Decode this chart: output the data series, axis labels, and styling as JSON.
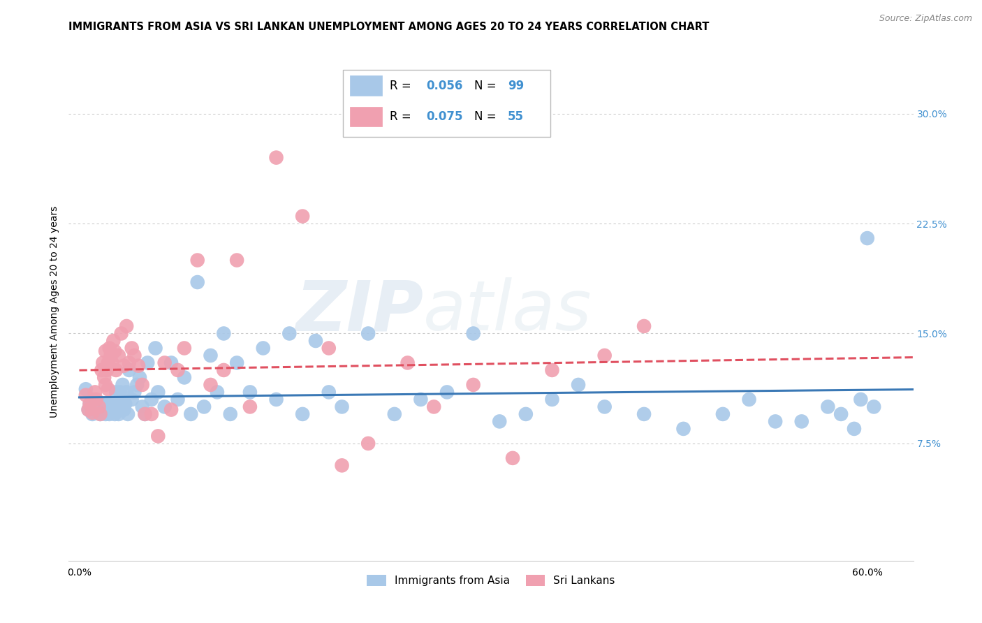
{
  "title": "IMMIGRANTS FROM ASIA VS SRI LANKAN UNEMPLOYMENT AMONG AGES 20 TO 24 YEARS CORRELATION CHART",
  "source": "Source: ZipAtlas.com",
  "xlabel_ticks": [
    "0.0%",
    "",
    "",
    "",
    "",
    "",
    "60.0%"
  ],
  "xlabel_vals": [
    0.0,
    0.1,
    0.2,
    0.3,
    0.4,
    0.5,
    0.6
  ],
  "ylabel": "Unemployment Among Ages 20 to 24 years",
  "ylabel_ticks": [
    "7.5%",
    "15.0%",
    "22.5%",
    "30.0%"
  ],
  "ylabel_vals": [
    0.075,
    0.15,
    0.225,
    0.3
  ],
  "ylim": [
    -0.005,
    0.335
  ],
  "xlim": [
    -0.008,
    0.635
  ],
  "series": [
    {
      "label": "Immigrants from Asia",
      "R": 0.056,
      "N": 99,
      "color": "#a8c8e8",
      "line_color": "#3a78b5",
      "line_style": "solid",
      "x": [
        0.005,
        0.007,
        0.008,
        0.01,
        0.01,
        0.01,
        0.012,
        0.013,
        0.014,
        0.015,
        0.015,
        0.016,
        0.016,
        0.017,
        0.018,
        0.018,
        0.019,
        0.019,
        0.02,
        0.02,
        0.021,
        0.021,
        0.022,
        0.022,
        0.023,
        0.023,
        0.024,
        0.024,
        0.025,
        0.025,
        0.026,
        0.026,
        0.027,
        0.027,
        0.028,
        0.028,
        0.029,
        0.03,
        0.03,
        0.031,
        0.032,
        0.033,
        0.034,
        0.035,
        0.036,
        0.037,
        0.038,
        0.04,
        0.042,
        0.044,
        0.046,
        0.048,
        0.05,
        0.052,
        0.055,
        0.058,
        0.06,
        0.065,
        0.07,
        0.075,
        0.08,
        0.085,
        0.09,
        0.095,
        0.1,
        0.105,
        0.11,
        0.115,
        0.12,
        0.13,
        0.14,
        0.15,
        0.16,
        0.17,
        0.18,
        0.19,
        0.2,
        0.22,
        0.24,
        0.26,
        0.28,
        0.3,
        0.32,
        0.34,
        0.36,
        0.38,
        0.4,
        0.43,
        0.46,
        0.49,
        0.51,
        0.53,
        0.55,
        0.57,
        0.58,
        0.59,
        0.595,
        0.6,
        0.605
      ],
      "y": [
        0.112,
        0.098,
        0.102,
        0.095,
        0.1,
        0.105,
        0.098,
        0.1,
        0.096,
        0.098,
        0.102,
        0.095,
        0.1,
        0.098,
        0.096,
        0.1,
        0.098,
        0.102,
        0.095,
        0.1,
        0.098,
        0.102,
        0.096,
        0.1,
        0.098,
        0.095,
        0.1,
        0.102,
        0.096,
        0.1,
        0.098,
        0.102,
        0.095,
        0.1,
        0.11,
        0.098,
        0.102,
        0.095,
        0.1,
        0.11,
        0.105,
        0.115,
        0.098,
        0.102,
        0.11,
        0.095,
        0.125,
        0.105,
        0.11,
        0.115,
        0.12,
        0.1,
        0.095,
        0.13,
        0.105,
        0.14,
        0.11,
        0.1,
        0.13,
        0.105,
        0.12,
        0.095,
        0.185,
        0.1,
        0.135,
        0.11,
        0.15,
        0.095,
        0.13,
        0.11,
        0.14,
        0.105,
        0.15,
        0.095,
        0.145,
        0.11,
        0.1,
        0.15,
        0.095,
        0.105,
        0.11,
        0.15,
        0.09,
        0.095,
        0.105,
        0.115,
        0.1,
        0.095,
        0.085,
        0.095,
        0.105,
        0.09,
        0.09,
        0.1,
        0.095,
        0.085,
        0.105,
        0.215,
        0.1
      ]
    },
    {
      "label": "Sri Lankans",
      "R": 0.075,
      "N": 55,
      "color": "#f0a0b0",
      "line_color": "#e05060",
      "line_style": "dashed",
      "x": [
        0.005,
        0.007,
        0.008,
        0.01,
        0.012,
        0.013,
        0.015,
        0.016,
        0.017,
        0.018,
        0.019,
        0.02,
        0.02,
        0.021,
        0.022,
        0.022,
        0.023,
        0.024,
        0.025,
        0.026,
        0.027,
        0.028,
        0.03,
        0.032,
        0.034,
        0.036,
        0.038,
        0.04,
        0.042,
        0.045,
        0.048,
        0.05,
        0.055,
        0.06,
        0.065,
        0.07,
        0.075,
        0.08,
        0.09,
        0.1,
        0.11,
        0.12,
        0.13,
        0.15,
        0.17,
        0.19,
        0.2,
        0.22,
        0.25,
        0.27,
        0.3,
        0.33,
        0.36,
        0.4,
        0.43
      ],
      "y": [
        0.108,
        0.098,
        0.102,
        0.096,
        0.11,
        0.105,
        0.1,
        0.095,
        0.125,
        0.13,
        0.12,
        0.115,
        0.138,
        0.125,
        0.13,
        0.112,
        0.14,
        0.135,
        0.13,
        0.145,
        0.138,
        0.125,
        0.135,
        0.15,
        0.128,
        0.155,
        0.13,
        0.14,
        0.135,
        0.128,
        0.115,
        0.095,
        0.095,
        0.08,
        0.13,
        0.098,
        0.125,
        0.14,
        0.2,
        0.115,
        0.125,
        0.2,
        0.1,
        0.27,
        0.23,
        0.14,
        0.06,
        0.075,
        0.13,
        0.1,
        0.115,
        0.065,
        0.125,
        0.135,
        0.155
      ]
    }
  ],
  "watermark": "ZIPatlas",
  "background_color": "#ffffff",
  "grid_color": "#cccccc",
  "title_fontsize": 10.5,
  "axis_label_fontsize": 10,
  "tick_fontsize": 10,
  "legend_fontsize": 11,
  "right_tick_color": "#4090d0",
  "blue_text_color": "#4090d0"
}
